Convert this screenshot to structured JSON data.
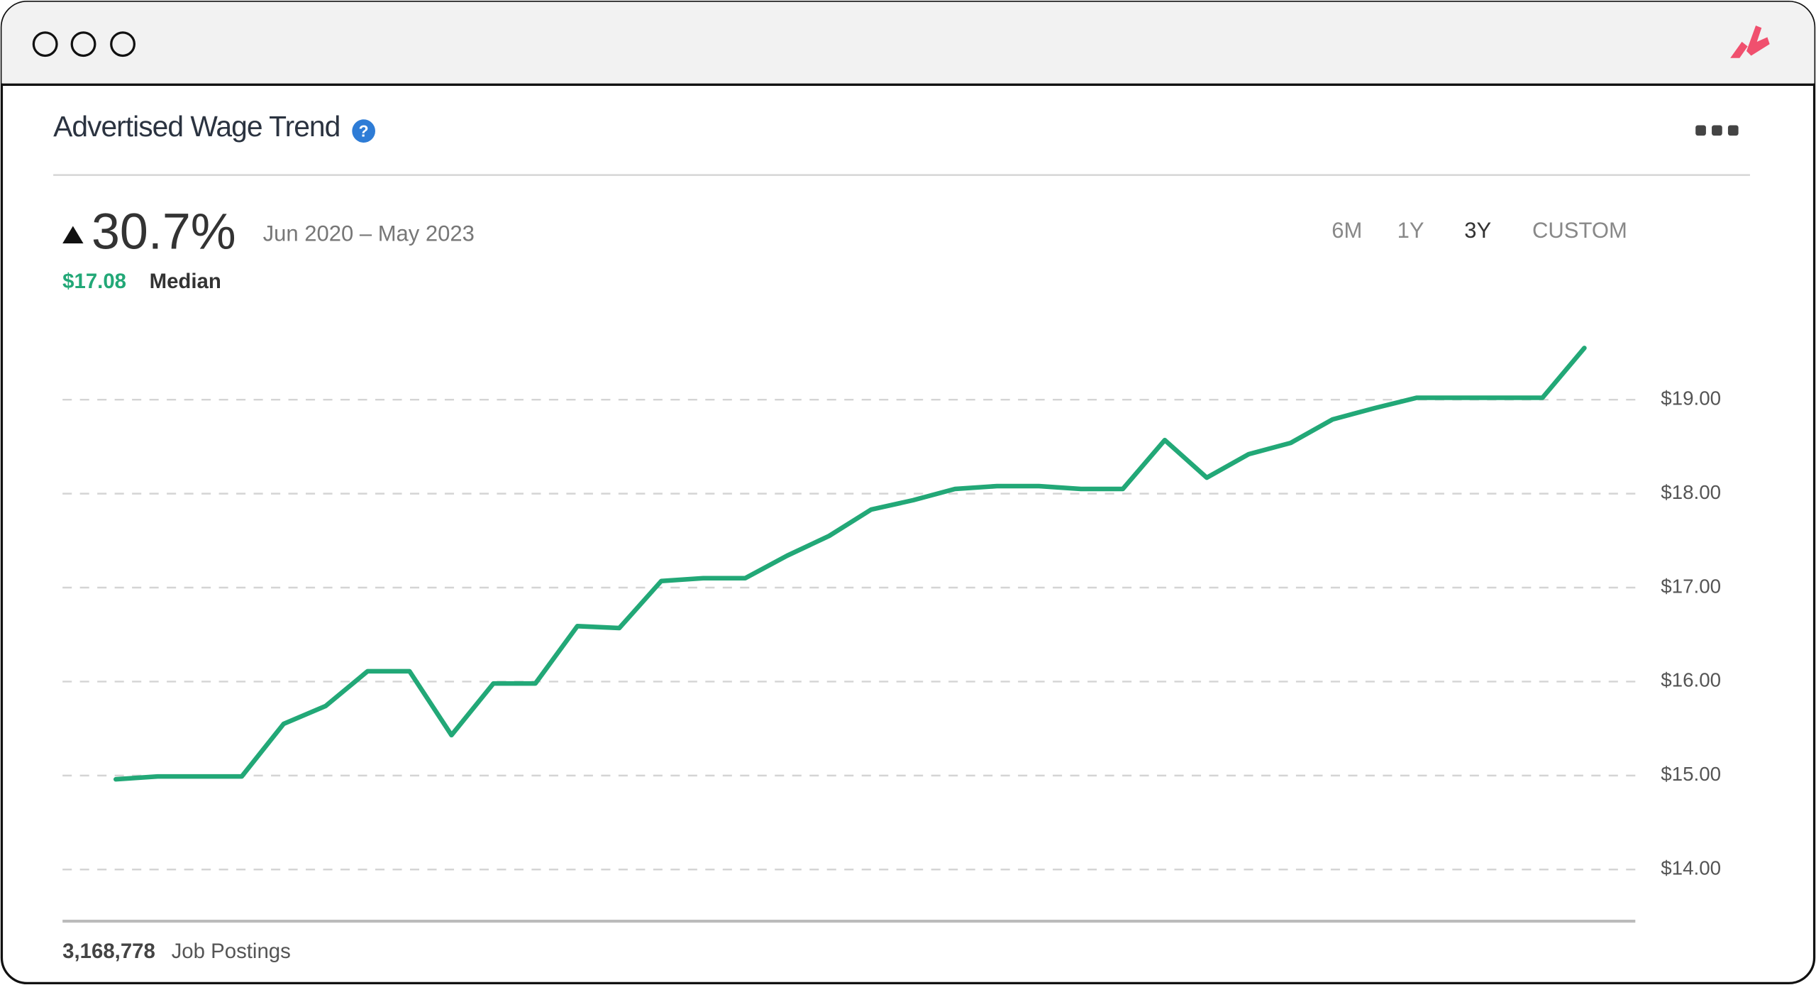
{
  "header": {
    "title": "Advertised Wage Trend",
    "change": "30.7%",
    "period": "Jun 2020 – May 2023",
    "median_value": "$17.08",
    "median_label": "Median",
    "ranges": [
      "6M",
      "1Y",
      "3Y",
      "CUSTOM"
    ],
    "active_range": "3Y"
  },
  "chart_data": {
    "type": "line",
    "color": "#22a877",
    "values": [
      14.96,
      14.99,
      14.99,
      14.99,
      15.55,
      15.74,
      16.11,
      16.11,
      15.43,
      15.98,
      15.98,
      16.59,
      16.57,
      17.07,
      17.1,
      17.1,
      17.34,
      17.55,
      17.83,
      17.93,
      18.05,
      18.08,
      18.08,
      18.05,
      18.05,
      18.57,
      18.17,
      18.42,
      18.54,
      18.79,
      18.91,
      19.02,
      19.02,
      19.02,
      19.02,
      19.55
    ],
    "ylim": [
      13.45,
      19.8
    ],
    "yticks": [
      {
        "value": 14,
        "label": "$14.00"
      },
      {
        "value": 15,
        "label": "$15.00"
      },
      {
        "value": 16,
        "label": "$16.00"
      },
      {
        "value": 17,
        "label": "$17.00"
      },
      {
        "value": 18,
        "label": "$18.00"
      },
      {
        "value": 19,
        "label": "$19.00"
      }
    ],
    "grid": true
  },
  "footer": {
    "count": "3,168,778",
    "label": "Job Postings"
  }
}
